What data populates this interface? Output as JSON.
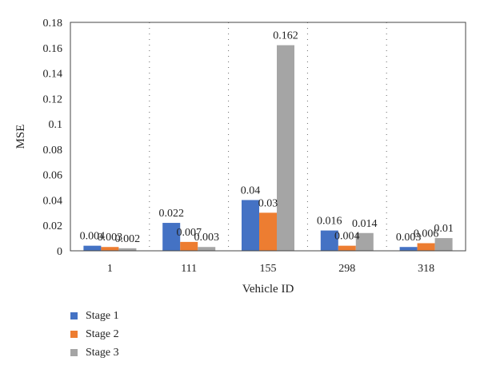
{
  "chart_data": {
    "type": "bar",
    "xlabel": "Vehicle ID",
    "ylabel": "MSE",
    "categories": [
      "1",
      "111",
      "155",
      "298",
      "318"
    ],
    "ylim": [
      0,
      0.18
    ],
    "yticks": [
      "0",
      "0.02",
      "0.04",
      "0.06",
      "0.08",
      "0.1",
      "0.12",
      "0.14",
      "0.16",
      "0.18"
    ],
    "grid": "dotted vertical",
    "legend_position": "bottom-left",
    "series": [
      {
        "name": "Stage 1",
        "color": "#4472c4",
        "values": [
          0.004,
          0.022,
          0.04,
          0.016,
          0.003
        ],
        "labels": [
          "0.004",
          "0.022",
          "0.04",
          "0.016",
          "0.003"
        ]
      },
      {
        "name": "Stage 2",
        "color": "#ed7d31",
        "values": [
          0.003,
          0.007,
          0.03,
          0.004,
          0.006
        ],
        "labels": [
          "0.003",
          "0.007",
          "0.03",
          "0.004",
          "0.006"
        ]
      },
      {
        "name": "Stage 3",
        "color": "#a5a5a5",
        "values": [
          0.002,
          0.003,
          0.162,
          0.014,
          0.01
        ],
        "labels": [
          "0.002",
          "0.003",
          "0.162",
          "0.014",
          "0.01"
        ]
      }
    ]
  }
}
